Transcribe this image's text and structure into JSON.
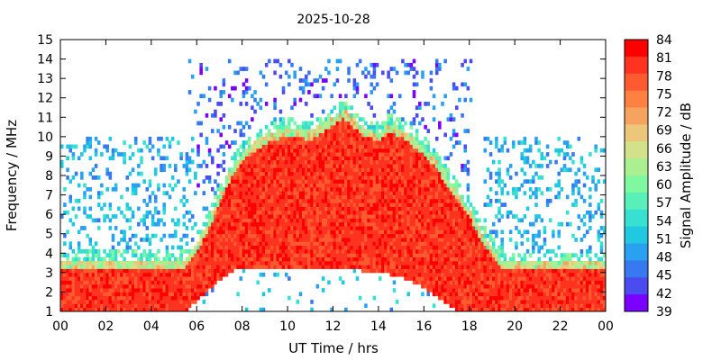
{
  "chart_data": {
    "type": "heatmap",
    "title": "2025-10-28",
    "xlabel": "UT Time / hrs",
    "ylabel": "Frequency / MHz",
    "xlim": [
      0,
      24
    ],
    "ylim": [
      1,
      15
    ],
    "x_ticks": [
      "00",
      "02",
      "04",
      "06",
      "08",
      "10",
      "12",
      "14",
      "16",
      "18",
      "20",
      "22",
      "00"
    ],
    "y_ticks": [
      "1",
      "2",
      "3",
      "4",
      "5",
      "6",
      "7",
      "8",
      "9",
      "10",
      "11",
      "12",
      "13",
      "14",
      "15"
    ],
    "colorbar": {
      "label": "Signal Amplitude / dB",
      "range": [
        39,
        84
      ],
      "ticks": [
        "84",
        "81",
        "78",
        "75",
        "72",
        "69",
        "66",
        "63",
        "60",
        "57",
        "54",
        "51",
        "48",
        "45",
        "42",
        "39"
      ],
      "colors": [
        "#ff0000",
        "#ff3320",
        "#ff5a30",
        "#ff8040",
        "#f6a360",
        "#ecc67a",
        "#d3e28a",
        "#aaf090",
        "#80f8a0",
        "#58f0b8",
        "#38e0d0",
        "#20c8e0",
        "#2aa0f0",
        "#3878f0",
        "#4a4cf0",
        "#7a00ff"
      ]
    },
    "noise_band_dB": [
      48,
      45
    ],
    "high_signal_dB": [
      78,
      84
    ],
    "high_signal_region": {
      "x_hours": [
        0,
        5.5,
        6,
        6.5,
        7,
        7.5,
        8,
        9,
        10,
        11,
        11.8,
        12.5,
        13.2,
        14,
        14.5,
        15,
        15.5,
        16,
        16.5,
        17,
        17.5,
        18,
        18.5,
        19,
        19.5,
        20,
        24
      ],
      "upper_MHz": [
        3.7,
        3.7,
        4.5,
        5.6,
        7.0,
        8.3,
        9.2,
        10.1,
        10.5,
        10.3,
        10.9,
        11.4,
        10.6,
        10.2,
        10.7,
        10.4,
        10.0,
        9.5,
        8.9,
        8.0,
        7.2,
        6.3,
        5.2,
        4.3,
        3.6,
        3.6,
        3.6
      ],
      "lower_MHz": [
        1,
        1,
        1.5,
        2.1,
        2.6,
        3.0,
        3.3,
        3.2,
        3.1,
        3.2,
        3.3,
        3.2,
        3.1,
        3.0,
        2.9,
        2.8,
        2.5,
        2.2,
        1.8,
        1.4,
        1,
        1,
        1,
        1,
        1,
        1,
        1
      ]
    },
    "grid": false,
    "legend": "colorbar-right"
  }
}
